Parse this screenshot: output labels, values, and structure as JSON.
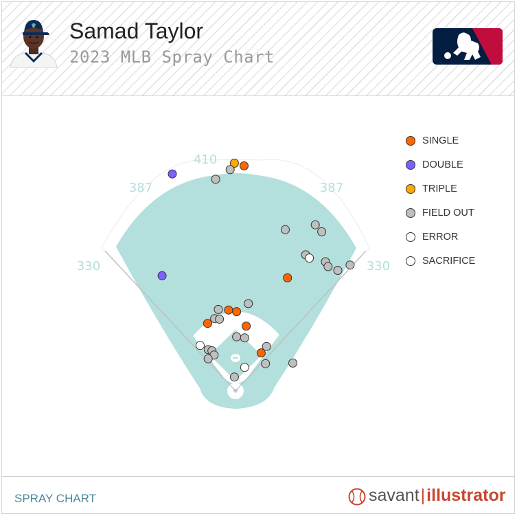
{
  "header": {
    "player_name": "Samad Taylor",
    "subtitle": "2023 MLB Spray Chart",
    "photo_icon": "player-headshot-icon",
    "logo_icon": "mlb-logo-icon",
    "logo_colors": {
      "blue": "#041e42",
      "red": "#bf0d3e",
      "white": "#ffffff"
    }
  },
  "legend": {
    "items": [
      {
        "key": "single",
        "label": "SINGLE",
        "color": "#ff6600"
      },
      {
        "key": "double",
        "label": "DOUBLE",
        "color": "#7b61ff"
      },
      {
        "key": "triple",
        "label": "TRIPLE",
        "color": "#ffaa00"
      },
      {
        "key": "field_out",
        "label": "FIELD OUT",
        "color": "#bfbfbf"
      },
      {
        "key": "error",
        "label": "ERROR",
        "color": "#ffffff"
      },
      {
        "key": "sacrifice",
        "label": "SACRIFICE",
        "color": "#ffffff"
      }
    ]
  },
  "chart_data": {
    "type": "scatter",
    "field_distance_labels": [
      "330",
      "387",
      "410",
      "387",
      "330"
    ],
    "field_colors": {
      "grass": "#b3dfdc",
      "infield": "#ffffff",
      "warning_track": "#ffffff",
      "foul_line": "#bbbbbb",
      "distance_label": "#b3dfdc"
    },
    "x_range": [
      -250,
      250
    ],
    "y_range": [
      -10,
      460
    ],
    "units": "feet",
    "points": [
      {
        "type": "double",
        "x": -118,
        "y": 405
      },
      {
        "type": "double",
        "x": -137,
        "y": 215
      },
      {
        "type": "triple",
        "x": -2,
        "y": 425
      },
      {
        "type": "single",
        "x": 16,
        "y": 420
      },
      {
        "type": "single",
        "x": 97,
        "y": 211
      },
      {
        "type": "single",
        "x": -52,
        "y": 126
      },
      {
        "type": "single",
        "x": -13,
        "y": 151
      },
      {
        "type": "single",
        "x": 2,
        "y": 148
      },
      {
        "type": "single",
        "x": 20,
        "y": 121
      },
      {
        "type": "single",
        "x": 48,
        "y": 71
      },
      {
        "type": "field_out",
        "x": -37,
        "y": 395
      },
      {
        "type": "field_out",
        "x": -10,
        "y": 413
      },
      {
        "type": "field_out",
        "x": 93,
        "y": 301
      },
      {
        "type": "field_out",
        "x": 149,
        "y": 310
      },
      {
        "type": "field_out",
        "x": 161,
        "y": 297
      },
      {
        "type": "field_out",
        "x": 131,
        "y": 254
      },
      {
        "type": "field_out",
        "x": 168,
        "y": 241
      },
      {
        "type": "field_out",
        "x": 173,
        "y": 232
      },
      {
        "type": "field_out",
        "x": 191,
        "y": 225
      },
      {
        "type": "field_out",
        "x": 214,
        "y": 235
      },
      {
        "type": "field_out",
        "x": -32,
        "y": 152
      },
      {
        "type": "field_out",
        "x": -39,
        "y": 135
      },
      {
        "type": "field_out",
        "x": -30,
        "y": 134
      },
      {
        "type": "field_out",
        "x": 24,
        "y": 163
      },
      {
        "type": "field_out",
        "x": 2,
        "y": 101
      },
      {
        "type": "field_out",
        "x": 17,
        "y": 99
      },
      {
        "type": "field_out",
        "x": -51,
        "y": 77
      },
      {
        "type": "field_out",
        "x": -44,
        "y": 75
      },
      {
        "type": "field_out",
        "x": -40,
        "y": 67
      },
      {
        "type": "field_out",
        "x": -51,
        "y": 60
      },
      {
        "type": "field_out",
        "x": 58,
        "y": 83
      },
      {
        "type": "field_out",
        "x": 56,
        "y": 51
      },
      {
        "type": "field_out",
        "x": 107,
        "y": 52
      },
      {
        "type": "field_out",
        "x": -2,
        "y": 26
      },
      {
        "type": "error",
        "x": 138,
        "y": 248
      },
      {
        "type": "error",
        "x": -66,
        "y": 85
      },
      {
        "type": "error",
        "x": 17,
        "y": 44
      }
    ]
  },
  "footer": {
    "label": "SPRAY CHART",
    "brand_left": "savant",
    "brand_separator": "|",
    "brand_right": "illustrator",
    "brand_icon": "baseball-icon"
  }
}
